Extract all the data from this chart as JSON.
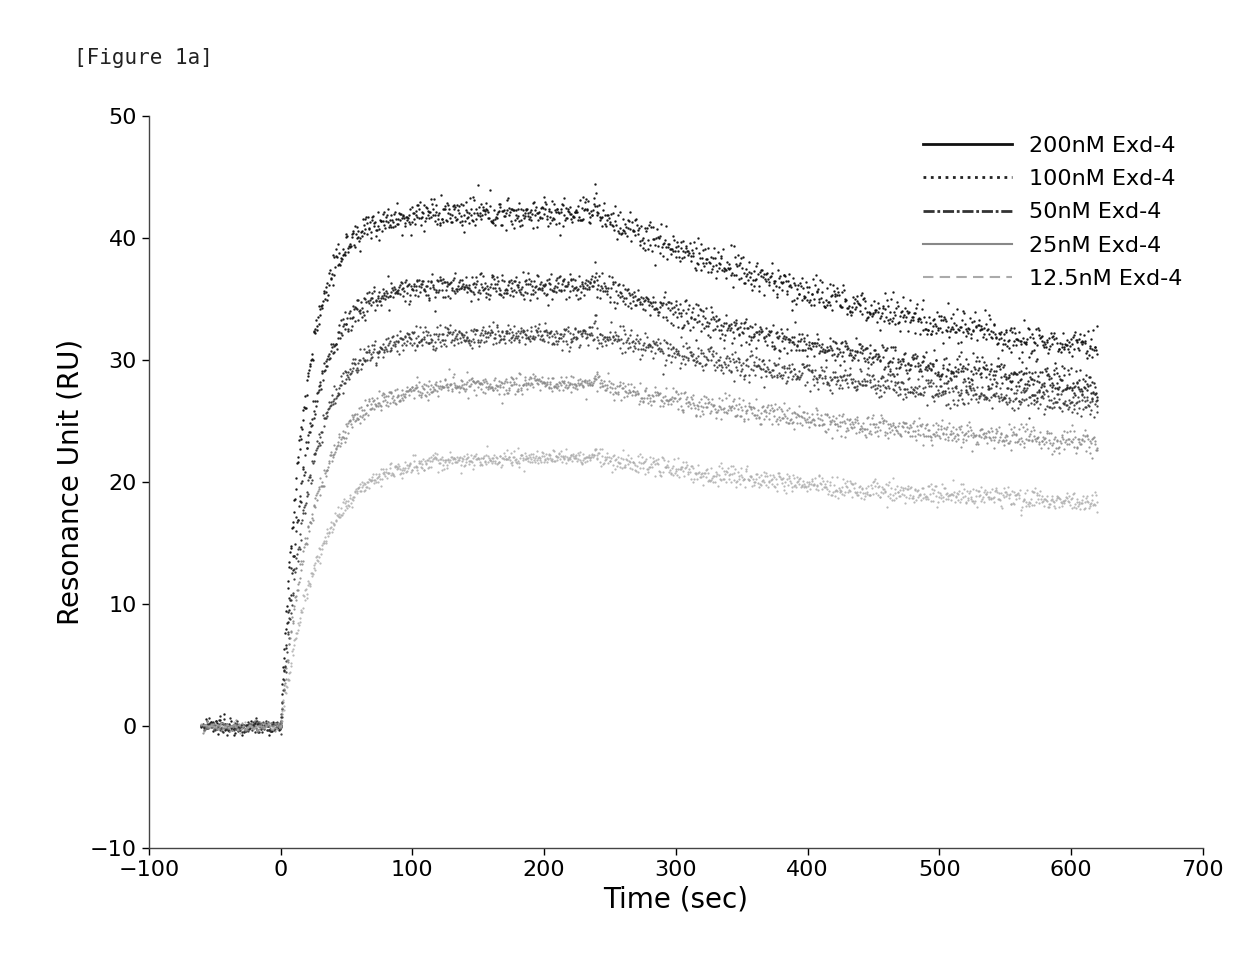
{
  "xlabel": "Time (sec)",
  "ylabel": "Resonance Unit (RU)",
  "xlim": [
    -100,
    700
  ],
  "ylim": [
    -10,
    50
  ],
  "xticks": [
    -100,
    0,
    100,
    200,
    300,
    400,
    500,
    600,
    700
  ],
  "yticks": [
    -10,
    0,
    10,
    20,
    30,
    40,
    50
  ],
  "association_start": 0,
  "association_end": 240,
  "dissociation_end": 620,
  "baseline_start": -60,
  "series": [
    {
      "label": "200nM Exd-4",
      "color": "#111111",
      "Rmax": 42.0,
      "peak_bump": 2.5,
      "plateau": 27.0,
      "ka": 0.055,
      "kd": 0.0035,
      "linewidth": 1.2,
      "noise": 1.2,
      "marker": ".",
      "markersize": 1.5
    },
    {
      "label": "100nM Exd-4",
      "color": "#222222",
      "Rmax": 36.0,
      "peak_bump": 2.0,
      "plateau": 25.0,
      "ka": 0.05,
      "kd": 0.0035,
      "linewidth": 1.0,
      "noise": 1.0,
      "marker": ".",
      "markersize": 1.5
    },
    {
      "label": "50nM Exd-4",
      "color": "#333333",
      "Rmax": 32.0,
      "peak_bump": 1.5,
      "plateau": 24.5,
      "ka": 0.045,
      "kd": 0.0035,
      "linewidth": 0.9,
      "noise": 0.9,
      "marker": ".",
      "markersize": 1.3
    },
    {
      "label": "25nM Exd-4",
      "color": "#888888",
      "Rmax": 28.0,
      "peak_bump": 1.0,
      "plateau": 21.5,
      "ka": 0.04,
      "kd": 0.0035,
      "linewidth": 0.8,
      "noise": 0.8,
      "marker": ".",
      "markersize": 1.2
    },
    {
      "label": "12.5nM Exd-4",
      "color": "#aaaaaa",
      "Rmax": 22.0,
      "peak_bump": 0.8,
      "plateau": 17.0,
      "ka": 0.035,
      "kd": 0.0035,
      "linewidth": 0.7,
      "noise": 0.7,
      "marker": ".",
      "markersize": 1.1
    }
  ],
  "background_color": "#ffffff",
  "figure_label": "[Figure 1a]",
  "label_fontsize": 15,
  "axis_label_fontsize": 20,
  "tick_fontsize": 16,
  "legend_fontsize": 16
}
